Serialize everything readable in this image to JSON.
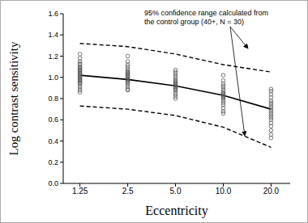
{
  "chart_data": {
    "type": "scatter",
    "xlabel": "Eccentricity",
    "ylabel": "Log contrast sensitivity",
    "categories": [
      "1.25",
      "2.5",
      "5.0",
      "10.0",
      "20.0"
    ],
    "ylim": [
      0,
      1.6
    ],
    "yticks": [
      {
        "value": 0,
        "label": "0.0"
      },
      0.2,
      0.4,
      0.6,
      0.8,
      {
        "value": 1,
        "label": "1.0"
      },
      1.2,
      1.4,
      1.6
    ],
    "annotation": [
      "95% confidence range calculated from",
      "the control group (40+, N = 30)"
    ],
    "series": [
      {
        "type": "scatter",
        "marker": "open_circle",
        "color": "#555555",
        "values": [
          [
            1.22,
            1.18,
            1.15,
            1.13,
            1.12,
            1.1,
            1.09,
            1.08,
            1.07,
            1.06,
            1.05,
            1.04,
            1.03,
            1.02,
            1.01,
            1.0,
            0.99,
            0.98,
            0.97,
            0.96,
            0.95,
            0.94,
            0.92,
            0.9,
            0.88,
            0.86
          ],
          [
            1.2,
            1.15,
            1.12,
            1.1,
            1.08,
            1.06,
            1.05,
            1.04,
            1.03,
            1.02,
            1.01,
            1.0,
            0.99,
            0.98,
            0.97,
            0.96,
            0.95,
            0.93,
            0.91,
            0.89,
            0.88
          ],
          [
            1.07,
            1.05,
            1.03,
            1.01,
            0.99,
            0.97,
            0.96,
            0.95,
            0.94,
            0.93,
            0.92,
            0.91,
            0.9,
            0.89,
            0.88,
            0.86,
            0.84,
            0.82,
            0.8
          ],
          [
            1.02,
            0.97,
            0.94,
            0.92,
            0.9,
            0.88,
            0.86,
            0.85,
            0.84,
            0.83,
            0.82,
            0.81,
            0.8,
            0.78,
            0.76,
            0.74,
            0.71,
            0.68,
            0.66
          ],
          [
            0.89,
            0.87,
            0.84,
            0.81,
            0.78,
            0.76,
            0.74,
            0.72,
            0.7,
            0.68,
            0.66,
            0.64,
            0.62,
            0.6,
            0.57,
            0.54,
            0.5,
            0.46,
            0.43
          ]
        ]
      },
      {
        "type": "line",
        "line_style": "solid",
        "color": "#000000",
        "values": [
          1.02,
          0.98,
          0.92,
          0.83,
          0.7
        ]
      },
      {
        "type": "line",
        "line_style": "dashed",
        "color": "#000000",
        "values": [
          1.32,
          1.29,
          1.22,
          1.12,
          1.05
        ]
      },
      {
        "type": "line",
        "line_style": "dashed",
        "color": "#000000",
        "values": [
          0.73,
          0.7,
          0.64,
          0.53,
          0.34
        ]
      }
    ]
  }
}
